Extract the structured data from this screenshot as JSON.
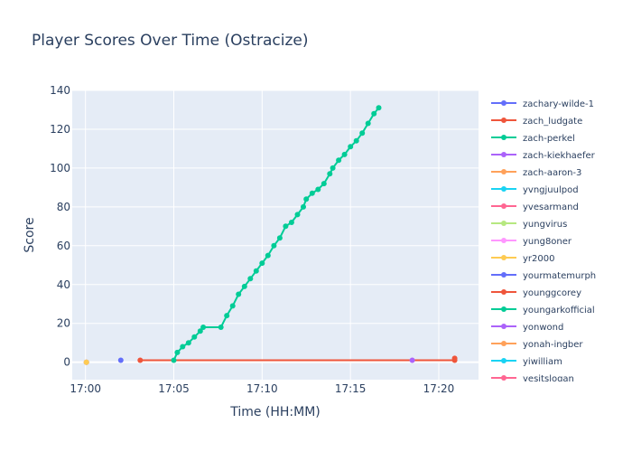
{
  "chart_data": {
    "type": "line",
    "title": "Player Scores Over Time (Ostracize)",
    "xlabel": "Time (HH:MM)",
    "ylabel": "Score",
    "x_ticks": [
      "17:00",
      "17:05",
      "17:10",
      "17:15",
      "17:20"
    ],
    "y_ticks": [
      0,
      20,
      40,
      60,
      80,
      100,
      120,
      140
    ],
    "xlim": [
      "16:59:15",
      "17:22:15"
    ],
    "ylim": [
      -9,
      140
    ],
    "grid": true,
    "legend_position": "right",
    "series": [
      {
        "name": "zachary-wilde-1",
        "color": "#636efa",
        "points": [
          [
            "17:02:00",
            1
          ]
        ]
      },
      {
        "name": "zach_ludgate",
        "color": "#EF553B",
        "points": [
          [
            "17:03:06",
            1
          ],
          [
            "17:20:54",
            1
          ],
          [
            "17:20:54",
            2
          ]
        ]
      },
      {
        "name": "zach-perkel",
        "color": "#00cc96",
        "points": [
          [
            "17:05:00",
            1
          ],
          [
            "17:05:12",
            5
          ],
          [
            "17:05:30",
            8
          ],
          [
            "17:05:50",
            10
          ],
          [
            "17:06:10",
            13
          ],
          [
            "17:06:30",
            16
          ],
          [
            "17:06:40",
            18
          ],
          [
            "17:07:40",
            18
          ],
          [
            "17:08:00",
            24
          ],
          [
            "17:08:20",
            29
          ],
          [
            "17:08:40",
            35
          ],
          [
            "17:09:00",
            39
          ],
          [
            "17:09:20",
            43
          ],
          [
            "17:09:40",
            47
          ],
          [
            "17:10:00",
            51
          ],
          [
            "17:10:20",
            55
          ],
          [
            "17:10:40",
            60
          ],
          [
            "17:11:00",
            64
          ],
          [
            "17:11:20",
            70
          ],
          [
            "17:11:40",
            72
          ],
          [
            "17:12:00",
            76
          ],
          [
            "17:12:20",
            80
          ],
          [
            "17:12:30",
            84
          ],
          [
            "17:12:50",
            87
          ],
          [
            "17:13:10",
            89
          ],
          [
            "17:13:30",
            92
          ],
          [
            "17:13:50",
            97
          ],
          [
            "17:14:00",
            100
          ],
          [
            "17:14:20",
            104
          ],
          [
            "17:14:40",
            107
          ],
          [
            "17:15:00",
            111
          ],
          [
            "17:15:20",
            114
          ],
          [
            "17:15:40",
            118
          ],
          [
            "17:16:00",
            123
          ],
          [
            "17:16:20",
            128
          ],
          [
            "17:16:36",
            131
          ]
        ]
      },
      {
        "name": "zach-kiekhaefer",
        "color": "#ab63fa",
        "points": [
          [
            "17:18:30",
            1
          ]
        ]
      },
      {
        "name": "zach-aaron-3",
        "color": "#FFA15A",
        "points": [
          [
            "17:00:03",
            0
          ]
        ]
      },
      {
        "name": "yvngjuulpod",
        "color": "#19d3f3",
        "points": [
          [
            "17:00:03",
            0
          ]
        ]
      },
      {
        "name": "yvesarmand",
        "color": "#FF6692",
        "points": [
          [
            "17:00:03",
            0
          ]
        ]
      },
      {
        "name": "yungvirus",
        "color": "#B6E880",
        "points": [
          [
            "17:00:03",
            0
          ]
        ]
      },
      {
        "name": "yung8oner",
        "color": "#FF97FF",
        "points": [
          [
            "17:00:03",
            0
          ]
        ]
      },
      {
        "name": "yr2000",
        "color": "#FECB52",
        "points": [
          [
            "17:00:03",
            0
          ]
        ]
      },
      {
        "name": "yourmatemurph",
        "color": "#636efa",
        "points": []
      },
      {
        "name": "younggcorey",
        "color": "#EF553B",
        "points": []
      },
      {
        "name": "youngarkofficial",
        "color": "#00cc96",
        "points": []
      },
      {
        "name": "yonwond",
        "color": "#ab63fa",
        "points": []
      },
      {
        "name": "yonah-ingber",
        "color": "#FFA15A",
        "points": []
      },
      {
        "name": "yiwilliam",
        "color": "#19d3f3",
        "points": []
      },
      {
        "name": "yesitslogan",
        "color": "#FF6692",
        "points": []
      }
    ]
  }
}
